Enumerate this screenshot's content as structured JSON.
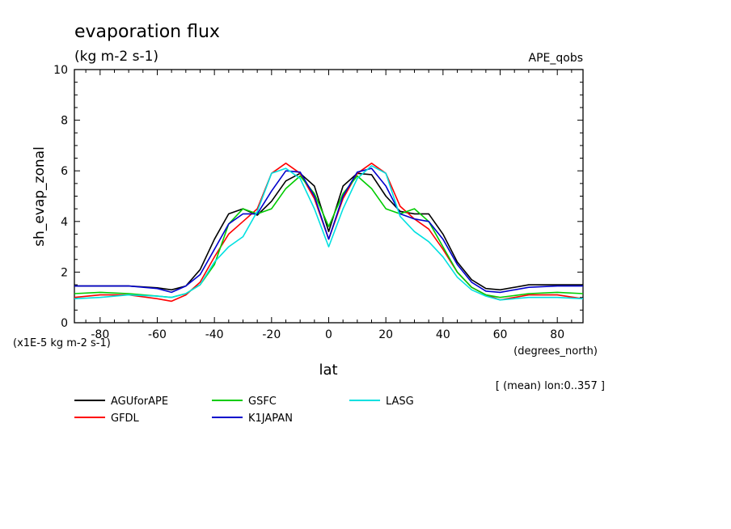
{
  "chart_data": {
    "type": "line",
    "title": "evaporation flux",
    "subtitle": "(kg m-2 s-1)",
    "experiment_label": "APE_qobs",
    "xlabel": "lat",
    "x_units": "(degrees_north)",
    "ylabel": "sh_evap_zonal",
    "y_scale_note": "(x1E-5 kg m-2 s-1)",
    "averaging_note": "[ (mean) lon:0..357 ]",
    "xlim": [
      -89,
      89
    ],
    "ylim": [
      0,
      10
    ],
    "x_ticks": [
      -80,
      -60,
      -40,
      -20,
      0,
      20,
      40,
      60,
      80
    ],
    "x_tick_labels": [
      "-80",
      "-60",
      "-40",
      "-20",
      "0",
      "20",
      "40",
      "60",
      "80"
    ],
    "y_ticks": [
      0,
      2,
      4,
      6,
      8,
      10
    ],
    "y_tick_labels": [
      "0",
      "2",
      "4",
      "6",
      "8",
      "10"
    ],
    "grid": false,
    "legend_position": "bottom",
    "x": [
      -89,
      -80,
      -70,
      -60,
      -55,
      -50,
      -45,
      -40,
      -35,
      -30,
      -25,
      -20,
      -15,
      -10,
      -5,
      0,
      5,
      10,
      15,
      20,
      25,
      30,
      35,
      40,
      45,
      50,
      55,
      60,
      70,
      80,
      89
    ],
    "series": [
      {
        "name": "AGUforAPE",
        "color": "#000000",
        "values": [
          1.45,
          1.45,
          1.45,
          1.38,
          1.3,
          1.45,
          2.1,
          3.3,
          4.3,
          4.5,
          4.25,
          4.8,
          5.6,
          5.9,
          5.4,
          3.6,
          5.4,
          5.9,
          5.85,
          5.0,
          4.4,
          4.3,
          4.3,
          3.5,
          2.4,
          1.7,
          1.35,
          1.3,
          1.5,
          1.5,
          1.5
        ]
      },
      {
        "name": "GFDL",
        "color": "#ff0000",
        "values": [
          1.0,
          1.1,
          1.1,
          0.95,
          0.85,
          1.1,
          1.6,
          2.6,
          3.5,
          4.0,
          4.5,
          5.9,
          6.3,
          5.9,
          4.9,
          3.3,
          4.9,
          5.9,
          6.3,
          5.9,
          4.6,
          4.1,
          3.7,
          2.9,
          2.0,
          1.4,
          1.1,
          0.9,
          1.1,
          1.1,
          0.95
        ]
      },
      {
        "name": "GSFC",
        "color": "#00cc00",
        "values": [
          1.15,
          1.2,
          1.15,
          1.05,
          1.0,
          1.15,
          1.5,
          2.3,
          3.9,
          4.5,
          4.3,
          4.5,
          5.3,
          5.8,
          5.1,
          3.8,
          5.1,
          5.8,
          5.3,
          4.5,
          4.3,
          4.5,
          4.0,
          3.0,
          2.0,
          1.4,
          1.1,
          1.0,
          1.15,
          1.2,
          1.15
        ]
      },
      {
        "name": "K1JAPAN",
        "color": "#0000cc",
        "values": [
          1.45,
          1.45,
          1.45,
          1.35,
          1.2,
          1.45,
          1.9,
          2.9,
          3.9,
          4.3,
          4.3,
          5.2,
          6.0,
          5.95,
          5.0,
          3.3,
          5.0,
          5.95,
          6.1,
          5.4,
          4.3,
          4.1,
          4.0,
          3.3,
          2.3,
          1.6,
          1.25,
          1.2,
          1.4,
          1.45,
          1.45
        ]
      },
      {
        "name": "LASG",
        "color": "#00e0e0",
        "values": [
          0.95,
          1.0,
          1.1,
          1.05,
          1.0,
          1.15,
          1.5,
          2.4,
          3.0,
          3.4,
          4.4,
          5.9,
          6.1,
          5.7,
          4.5,
          3.0,
          4.5,
          5.7,
          6.2,
          5.9,
          4.2,
          3.6,
          3.2,
          2.6,
          1.8,
          1.3,
          1.05,
          0.9,
          1.0,
          1.0,
          0.95
        ]
      }
    ]
  }
}
